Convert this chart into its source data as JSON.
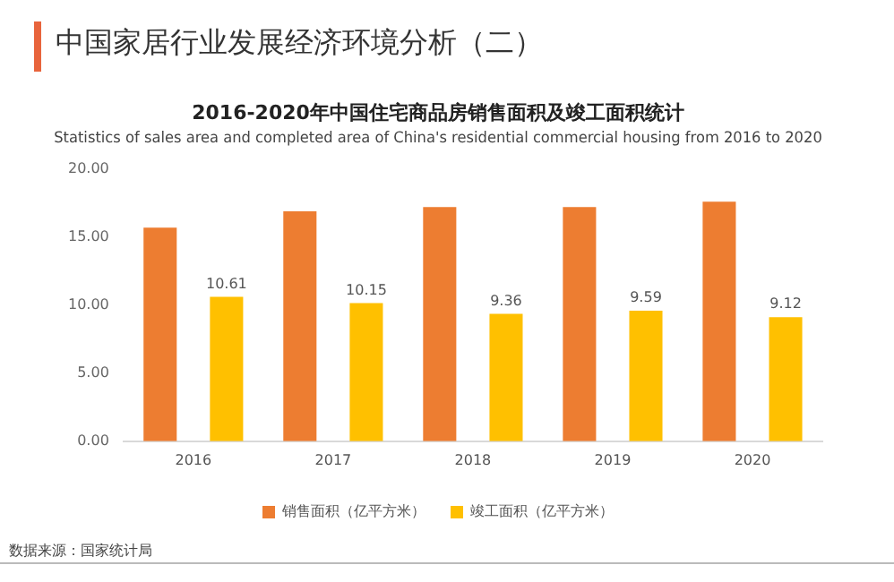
{
  "chart_data": {
    "type": "bar",
    "title": "2016-2020年中国住宅商品房销售面积及竣工面积统计",
    "subtitle": "Statistics of sales area and completed area of China's residential commercial housing from 2016 to 2020",
    "categories": [
      "2016",
      "2017",
      "2018",
      "2019",
      "2020"
    ],
    "series": [
      {
        "name": "销售面积（亿平方米）",
        "color": "#ed7d31",
        "values": [
          15.7,
          16.9,
          17.2,
          17.2,
          17.6
        ]
      },
      {
        "name": "竣工面积（亿平方米）",
        "color": "#ffc000",
        "values": [
          10.61,
          10.15,
          9.36,
          9.59,
          9.12
        ],
        "value_labels": [
          "10.61",
          "10.15",
          "9.36",
          "9.59",
          "9.12"
        ]
      }
    ],
    "ylim": [
      0,
      20
    ],
    "yticks": [
      {
        "value": 0,
        "label": "0.00"
      },
      {
        "value": 5,
        "label": "5.00"
      },
      {
        "value": 10,
        "label": "10.00"
      },
      {
        "value": 15,
        "label": "15.00"
      },
      {
        "value": 20,
        "label": "20.00"
      }
    ],
    "grid": false,
    "legend": "bottom",
    "annotations": [
      "中国家居行业发展经济环境分析（二）",
      "数据来源：国家统计局"
    ]
  }
}
